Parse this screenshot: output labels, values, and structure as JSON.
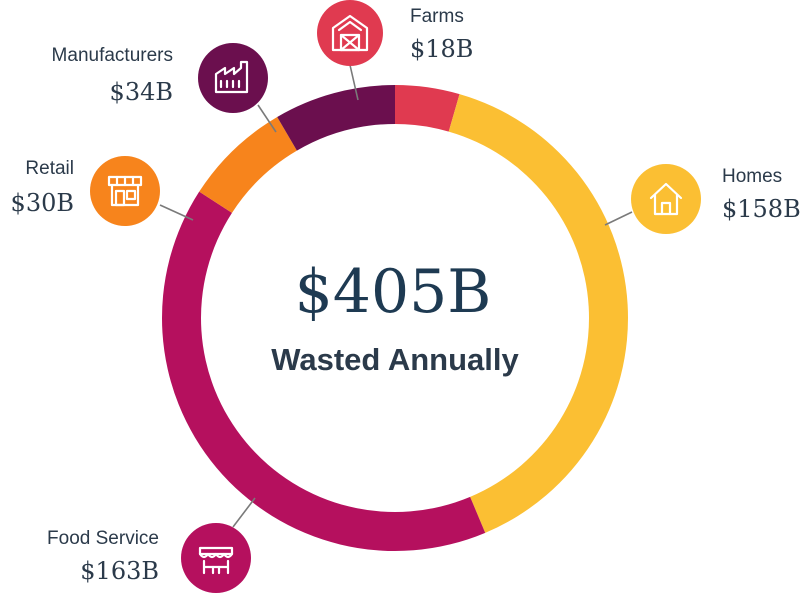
{
  "chart_data": {
    "type": "pie",
    "style": "donut",
    "total_label": "$405B",
    "center_caption": "Wasted Annually",
    "slices": [
      {
        "name": "Farms",
        "value": 18,
        "value_label": "$18B",
        "color": "#e03a50",
        "icon": "barn-icon"
      },
      {
        "name": "Homes",
        "value": 158,
        "value_label": "$158B",
        "color": "#fbbf33",
        "icon": "house-icon"
      },
      {
        "name": "Food Service",
        "value": 163,
        "value_label": "$163B",
        "color": "#b5105e",
        "icon": "food-stall-icon"
      },
      {
        "name": "Retail",
        "value": 30,
        "value_label": "$30B",
        "color": "#f7841c",
        "icon": "storefront-icon"
      },
      {
        "name": "Manufacturers",
        "value": 34,
        "value_label": "$34B",
        "color": "#6b0f4e",
        "icon": "factory-icon"
      }
    ]
  }
}
